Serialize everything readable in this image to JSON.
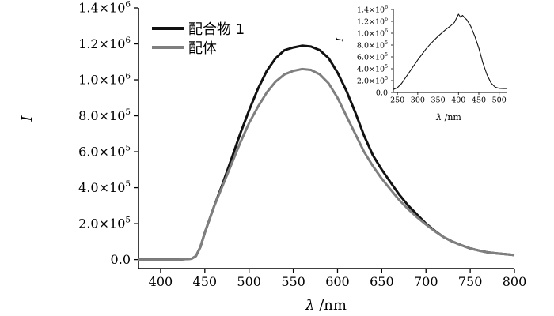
{
  "chart_data": [
    {
      "type": "line",
      "xlabel_symbol": "λ",
      "xlabel_unit": " /nm",
      "ylabel": "I",
      "xlim": [
        375,
        800
      ],
      "ylim": [
        -50000,
        1400000
      ],
      "xticks": [
        400,
        450,
        500,
        550,
        600,
        650,
        700,
        750,
        800
      ],
      "yticks": [
        {
          "value": 0,
          "mant": "0.0",
          "exp": ""
        },
        {
          "value": 200000,
          "mant": "2.0×10",
          "exp": "5"
        },
        {
          "value": 400000,
          "mant": "4.0×10",
          "exp": "5"
        },
        {
          "value": 600000,
          "mant": "6.0×10",
          "exp": "5"
        },
        {
          "value": 800000,
          "mant": "8.0×10",
          "exp": "5"
        },
        {
          "value": 1000000,
          "mant": "1.0×10",
          "exp": "6"
        },
        {
          "value": 1200000,
          "mant": "1.2×10",
          "exp": "6"
        },
        {
          "value": 1400000,
          "mant": "1.4×10",
          "exp": "6"
        }
      ],
      "legend_position": "top-left",
      "series": [
        {
          "name": "配合物 1",
          "color": "#111111",
          "x": [
            375,
            400,
            420,
            435,
            440,
            445,
            450,
            460,
            470,
            480,
            490,
            500,
            510,
            520,
            530,
            540,
            550,
            560,
            570,
            580,
            590,
            600,
            610,
            620,
            630,
            640,
            650,
            660,
            670,
            680,
            690,
            700,
            710,
            720,
            730,
            740,
            750,
            760,
            770,
            780,
            790,
            800
          ],
          "y": [
            0,
            0,
            0,
            5000,
            20000,
            70000,
            150000,
            290000,
            420000,
            560000,
            700000,
            830000,
            950000,
            1050000,
            1120000,
            1165000,
            1180000,
            1190000,
            1185000,
            1165000,
            1120000,
            1040000,
            940000,
            820000,
            690000,
            580000,
            500000,
            430000,
            360000,
            300000,
            250000,
            200000,
            160000,
            125000,
            100000,
            80000,
            62000,
            50000,
            40000,
            35000,
            30000,
            25000
          ]
        },
        {
          "name": "配体",
          "color": "#7f7f7f",
          "x": [
            375,
            400,
            420,
            435,
            440,
            445,
            450,
            460,
            470,
            480,
            490,
            500,
            510,
            520,
            530,
            540,
            550,
            560,
            570,
            580,
            590,
            600,
            610,
            620,
            630,
            640,
            650,
            660,
            670,
            680,
            690,
            700,
            710,
            720,
            730,
            740,
            750,
            760,
            770,
            780,
            790,
            800
          ],
          "y": [
            0,
            0,
            0,
            5000,
            20000,
            70000,
            150000,
            290000,
            410000,
            530000,
            650000,
            760000,
            850000,
            930000,
            990000,
            1030000,
            1050000,
            1060000,
            1055000,
            1030000,
            980000,
            900000,
            800000,
            700000,
            600000,
            520000,
            450000,
            390000,
            330000,
            280000,
            235000,
            195000,
            158000,
            125000,
            100000,
            80000,
            62000,
            50000,
            40000,
            35000,
            30000,
            25000
          ]
        }
      ]
    },
    {
      "type": "line",
      "position": "inset top-right",
      "xlabel_symbol": "λ",
      "xlabel_unit": " /nm",
      "ylabel": "I",
      "xlim": [
        240,
        520
      ],
      "ylim": [
        0,
        1400000
      ],
      "xticks": [
        250,
        300,
        350,
        400,
        450,
        500
      ],
      "yticks": [
        {
          "value": 0,
          "mant": "0.0",
          "exp": ""
        },
        {
          "value": 200000,
          "mant": "2.0×10",
          "exp": "5"
        },
        {
          "value": 400000,
          "mant": "4.0×10",
          "exp": "5"
        },
        {
          "value": 600000,
          "mant": "6.0×10",
          "exp": "5"
        },
        {
          "value": 800000,
          "mant": "8.0×10",
          "exp": "5"
        },
        {
          "value": 1000000,
          "mant": "1.0×10",
          "exp": "6"
        },
        {
          "value": 1200000,
          "mant": "1.2×10",
          "exp": "6"
        },
        {
          "value": 1400000,
          "mant": "1.4×10",
          "exp": "6"
        }
      ],
      "series": [
        {
          "color": "#111111",
          "x": [
            240,
            250,
            260,
            270,
            280,
            290,
            300,
            310,
            320,
            330,
            340,
            350,
            360,
            370,
            380,
            390,
            395,
            400,
            405,
            410,
            415,
            420,
            430,
            440,
            450,
            460,
            470,
            480,
            490,
            500,
            510,
            520
          ],
          "y": [
            50000,
            80000,
            150000,
            250000,
            350000,
            450000,
            550000,
            640000,
            730000,
            810000,
            880000,
            950000,
            1010000,
            1070000,
            1120000,
            1180000,
            1250000,
            1320000,
            1270000,
            1300000,
            1260000,
            1230000,
            1120000,
            950000,
            750000,
            500000,
            300000,
            160000,
            90000,
            70000,
            65000,
            65000
          ]
        }
      ]
    }
  ]
}
